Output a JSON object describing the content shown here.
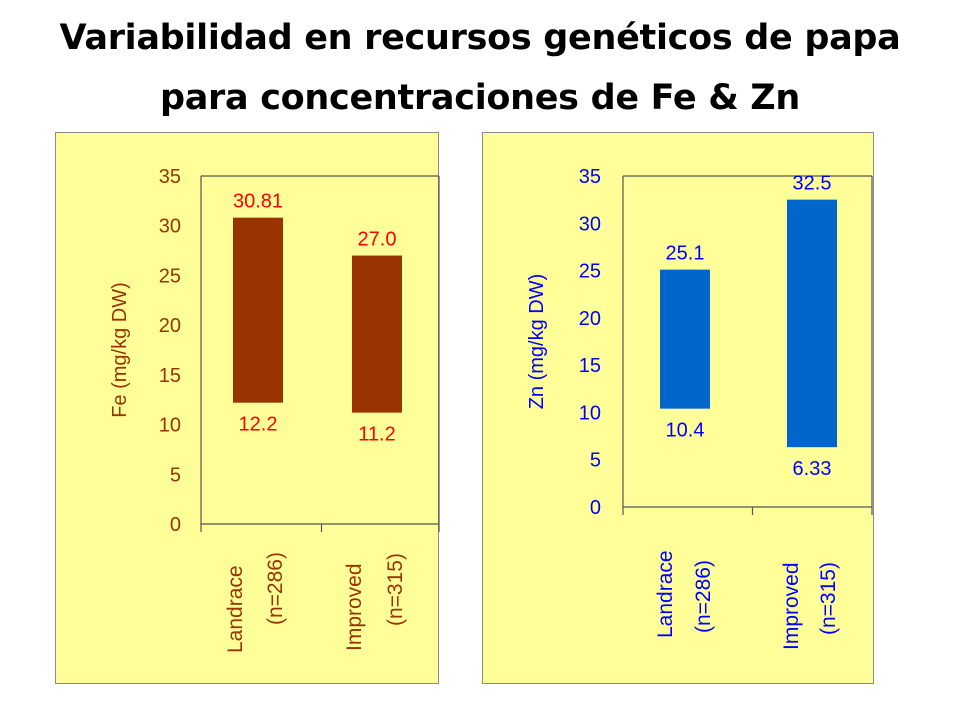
{
  "slide": {
    "title_line1": "Variabilidad en recursos genéticos de papa",
    "title_line2": "para concentraciones de Fe & Zn"
  },
  "chart_data": [
    {
      "type": "bar",
      "name": "fe",
      "ylabel": "Fe (mg/kg DW)",
      "ylim": [
        0,
        35
      ],
      "yticks": [
        0,
        5,
        10,
        15,
        20,
        25,
        30,
        35
      ],
      "categories": [
        {
          "label": "Landrace",
          "n": "(n=286)"
        },
        {
          "label": "Improved",
          "n": "(n=315)"
        }
      ],
      "ranges": [
        {
          "min": 12.2,
          "max": 30.81,
          "min_label": "12.2",
          "max_label": "30.81"
        },
        {
          "min": 11.2,
          "max": 27.0,
          "min_label": "11.2",
          "max_label": "27.0"
        }
      ],
      "bar_color": "#993300",
      "label_color": "#ff0000",
      "axis_color": "#993300"
    },
    {
      "type": "bar",
      "name": "zn",
      "ylabel": "Zn (mg/kg DW)",
      "ylim": [
        0,
        35
      ],
      "yticks": [
        0,
        5,
        10,
        15,
        20,
        25,
        30,
        35
      ],
      "categories": [
        {
          "label": "Landrace",
          "n": "(n=286)"
        },
        {
          "label": "Improved",
          "n": "(n=315)"
        }
      ],
      "ranges": [
        {
          "min": 10.4,
          "max": 25.1,
          "min_label": "10.4",
          "max_label": "25.1"
        },
        {
          "min": 6.33,
          "max": 32.5,
          "min_label": "6.33",
          "max_label": "32.5"
        }
      ],
      "bar_color": "#0066cc",
      "label_color": "#0000ff",
      "axis_color": "#0000ff"
    }
  ]
}
